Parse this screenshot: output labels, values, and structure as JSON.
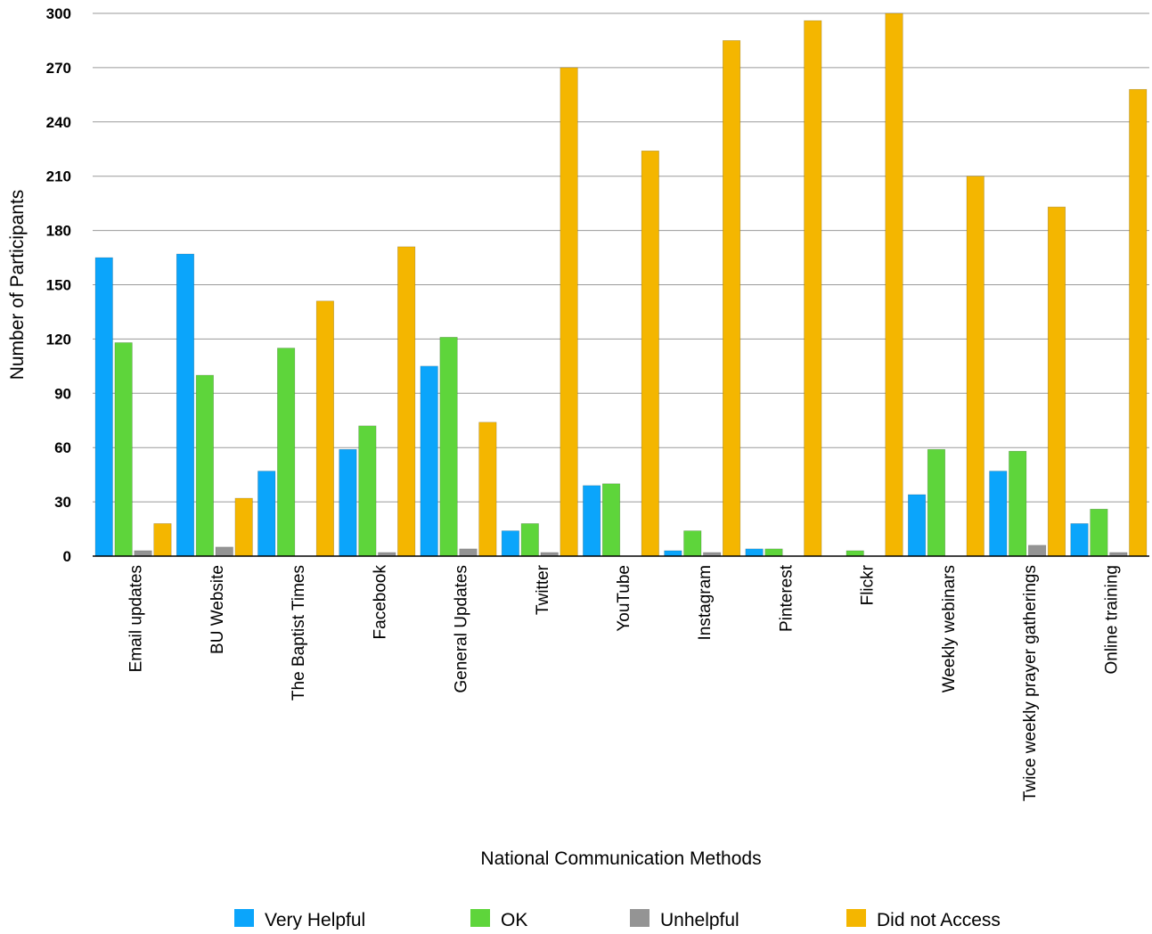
{
  "chart_data": {
    "type": "bar",
    "title": "",
    "xlabel": "National Communication Methods",
    "ylabel": "Number of Participants",
    "ylim": [
      0,
      300
    ],
    "yticks": [
      0,
      30,
      60,
      90,
      120,
      150,
      180,
      210,
      240,
      270,
      300
    ],
    "grid": true,
    "legend_position": "bottom",
    "categories": [
      "Email updates",
      "BU Website",
      "The Baptist Times",
      "Facebook",
      "General Updates",
      "Twitter",
      "YouTube",
      "Instagram",
      "Pinterest",
      "Flickr",
      "Weekly webinars",
      "Twice weekly prayer gatherings",
      "Online training"
    ],
    "series": [
      {
        "name": "Very Helpful",
        "color": "#0BA5FB",
        "values": [
          165,
          167,
          47,
          59,
          105,
          14,
          39,
          3,
          4,
          0,
          34,
          47,
          18
        ]
      },
      {
        "name": "OK",
        "color": "#5ED53B",
        "values": [
          118,
          100,
          115,
          72,
          121,
          18,
          40,
          14,
          4,
          3,
          59,
          58,
          26
        ]
      },
      {
        "name": "Unhelpful",
        "color": "#949494",
        "values": [
          3,
          5,
          0,
          2,
          4,
          2,
          0,
          2,
          0,
          0,
          0,
          6,
          2
        ]
      },
      {
        "name": "Did not Access",
        "color": "#F4B600",
        "values": [
          18,
          32,
          141,
          171,
          74,
          270,
          224,
          285,
          296,
          300,
          210,
          193,
          258
        ]
      }
    ]
  }
}
